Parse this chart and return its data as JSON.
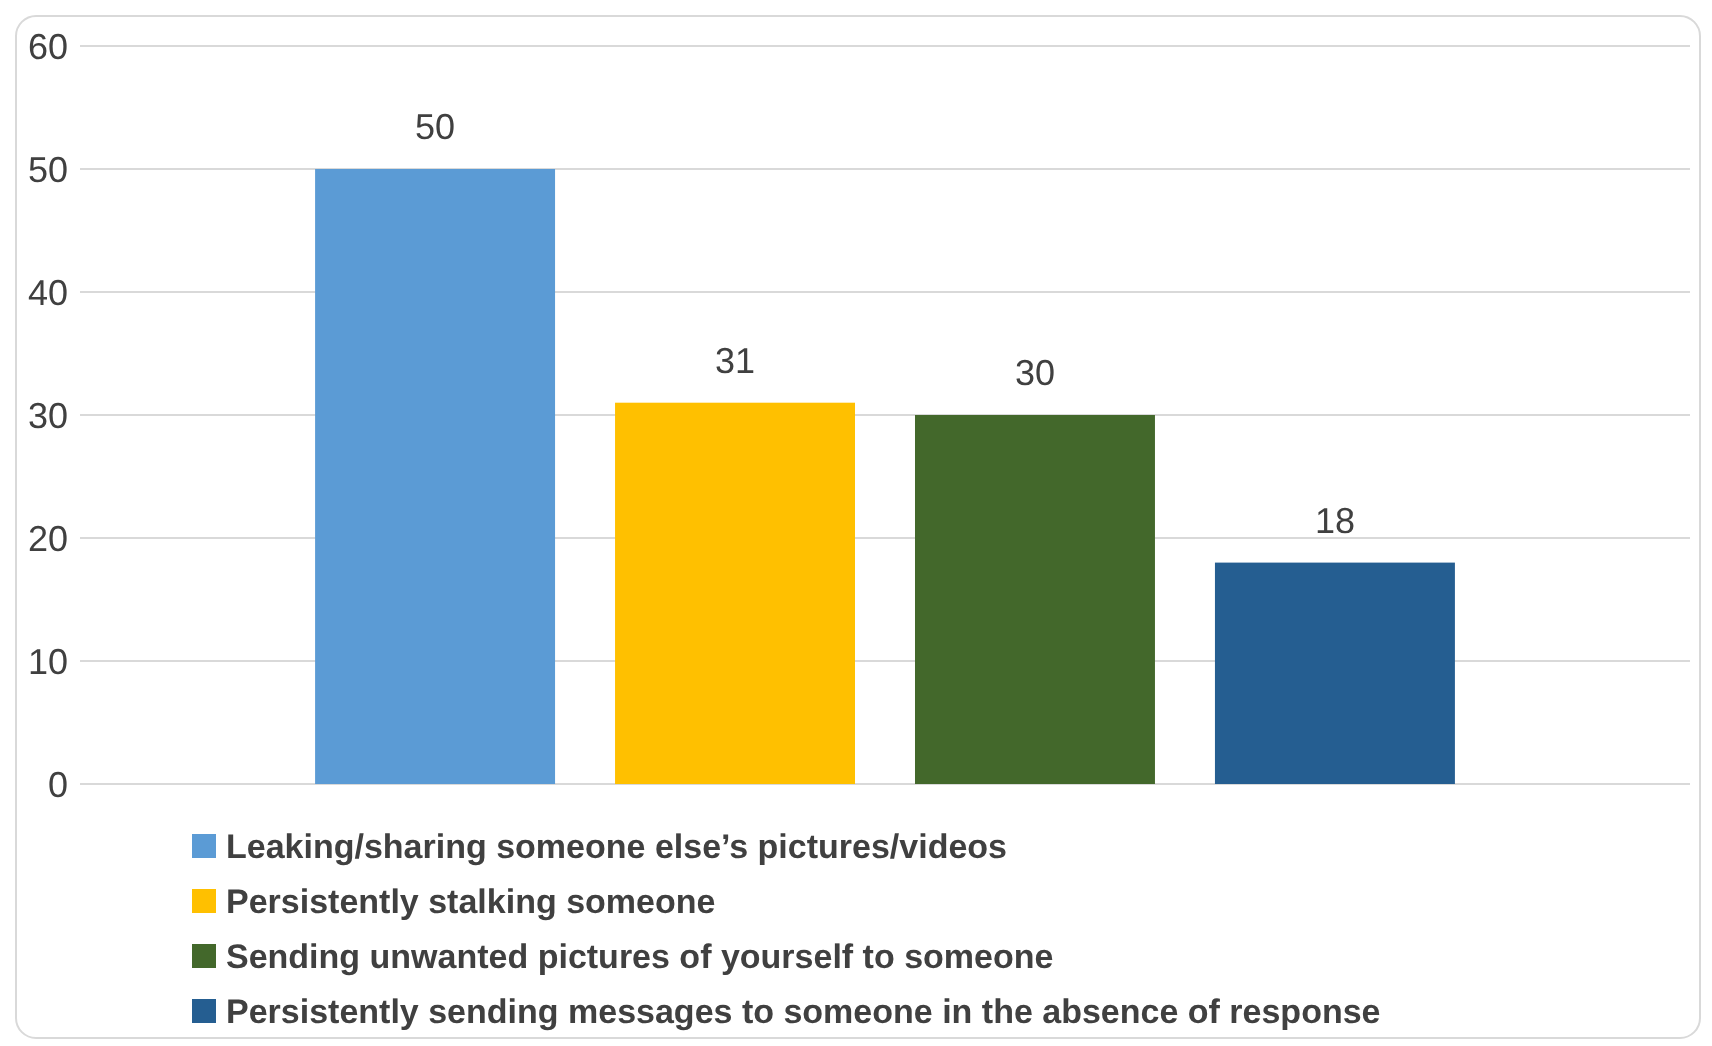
{
  "chart_data": {
    "type": "bar",
    "categories": [
      null
    ],
    "series": [
      {
        "name": "Leaking/sharing someone else’s pictures/videos",
        "color": "#5b9bd5",
        "values": [
          50
        ]
      },
      {
        "name": "Persistently stalking someone",
        "color": "#ffc000",
        "values": [
          31
        ]
      },
      {
        "name": "Sending unwanted pictures of yourself to someone",
        "color": "#43682b",
        "values": [
          30
        ]
      },
      {
        "name": "Persistently sending messages to someone in the absence of response",
        "color": "#255e91",
        "values": [
          18
        ]
      }
    ],
    "ylim": [
      0,
      60
    ],
    "yticks": [
      0,
      10,
      20,
      30,
      40,
      50,
      60
    ],
    "grid": "y",
    "data_labels": true,
    "legend": "bottom"
  }
}
